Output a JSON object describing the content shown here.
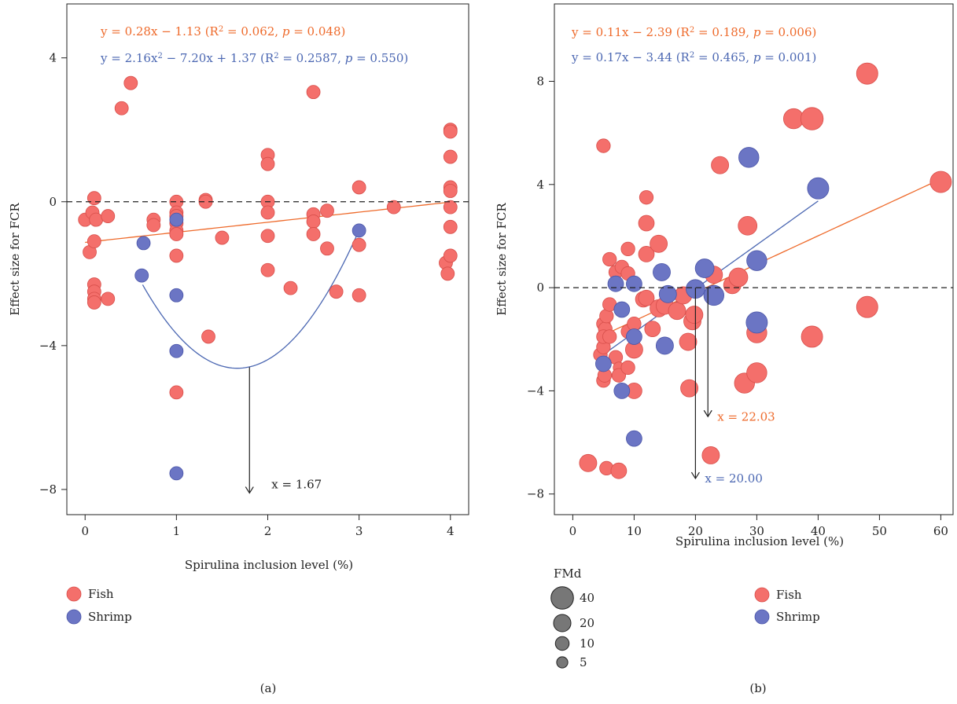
{
  "colors": {
    "fish": "#f46f6b",
    "shrimp": "#6b75c4",
    "fish_line": "#ee6a2b",
    "shrimp_line": "#4b67b2",
    "fmd": "#777777"
  },
  "chart_data": [
    {
      "type": "scatter",
      "panel": "(a)",
      "xlabel": "Spirulina inclusion level (%)",
      "ylabel": "Effect size for FCR",
      "xlim": [
        -0.2,
        4.2
      ],
      "ylim": [
        -8.7,
        5.5
      ],
      "xticks": [
        0,
        1,
        2,
        3,
        4
      ],
      "yticks": [
        -8,
        -4,
        0,
        4
      ],
      "tick_labels_x": [
        "0",
        "1",
        "2",
        "3",
        "4"
      ],
      "tick_labels_y": [
        "−8",
        "−4",
        "0",
        "4"
      ],
      "reference_line_y": 0,
      "equations": [
        {
          "parts": [
            "y = 0.28x − 1.13 (R",
            "2",
            " = 0.062, ",
            "p",
            " = 0.048)"
          ],
          "series": "Fish"
        },
        {
          "parts": [
            "y = 2.16x",
            "2",
            " − 7.20x + 1.37 (R",
            "2",
            " = 0.2587, ",
            "p",
            " = 0.550)"
          ],
          "series": "Shrimp"
        }
      ],
      "fits": [
        {
          "series": "Fish",
          "form": "linear",
          "coef": [
            0.28,
            -1.13
          ],
          "x_range": [
            0,
            4
          ]
        },
        {
          "series": "Shrimp",
          "form": "quadratic",
          "coef": [
            2.16,
            -7.2,
            1.37
          ],
          "x_range": [
            0.63,
            3.0
          ]
        }
      ],
      "annotations": [
        {
          "text": "x = 1.67",
          "x": 1.8,
          "y_from": -4.6,
          "y_to": -8.1
        }
      ],
      "series": [
        {
          "name": "Fish",
          "points": [
            [
              0,
              -0.5
            ],
            [
              0.05,
              -1.4
            ],
            [
              0.08,
              -0.3
            ],
            [
              0.1,
              0.1
            ],
            [
              0.1,
              -1.1
            ],
            [
              0.1,
              -2.3
            ],
            [
              0.1,
              -2.5
            ],
            [
              0.1,
              -2.7
            ],
            [
              0.1,
              -2.8
            ],
            [
              0.12,
              -0.5
            ],
            [
              0.25,
              -0.4
            ],
            [
              0.25,
              -2.7
            ],
            [
              0.4,
              2.6
            ],
            [
              0.5,
              3.3
            ],
            [
              0.75,
              -0.5
            ],
            [
              0.75,
              -0.65
            ],
            [
              1,
              0
            ],
            [
              1,
              -0.3
            ],
            [
              1,
              -0.4
            ],
            [
              1,
              -0.6
            ],
            [
              1,
              -0.8
            ],
            [
              1,
              -0.9
            ],
            [
              1,
              -1.5
            ],
            [
              1,
              -5.3
            ],
            [
              1.32,
              0.05
            ],
            [
              1.32,
              0.0
            ],
            [
              1.35,
              -3.75
            ],
            [
              1.5,
              -1.0
            ],
            [
              2,
              1.3
            ],
            [
              2,
              1.05
            ],
            [
              2,
              0
            ],
            [
              2,
              -0.3
            ],
            [
              2,
              -0.95
            ],
            [
              2,
              -1.9
            ],
            [
              2.25,
              -2.4
            ],
            [
              2.5,
              3.05
            ],
            [
              2.5,
              -0.35
            ],
            [
              2.5,
              -0.55
            ],
            [
              2.5,
              -0.9
            ],
            [
              2.65,
              -0.25
            ],
            [
              2.65,
              -1.3
            ],
            [
              2.75,
              -2.5
            ],
            [
              3,
              0.4
            ],
            [
              3,
              -1.2
            ],
            [
              3,
              -2.6
            ],
            [
              3.38,
              -0.15
            ],
            [
              3.95,
              -1.7
            ],
            [
              3.97,
              -2.0
            ],
            [
              4,
              2.0
            ],
            [
              4,
              1.95
            ],
            [
              4,
              1.25
            ],
            [
              4,
              0.4
            ],
            [
              4,
              0.3
            ],
            [
              4,
              -0.15
            ],
            [
              4,
              -0.7
            ],
            [
              4,
              -1.5
            ]
          ]
        },
        {
          "name": "Shrimp",
          "points": [
            [
              0.62,
              -2.05
            ],
            [
              0.64,
              -1.15
            ],
            [
              1,
              -0.5
            ],
            [
              1,
              -2.6
            ],
            [
              1,
              -4.15
            ],
            [
              1,
              -7.55
            ],
            [
              3,
              -0.8
            ]
          ]
        }
      ],
      "legend": [
        "Fish",
        "Shrimp"
      ]
    },
    {
      "type": "scatter",
      "panel": "(b)",
      "xlabel": "Spirulina inclusion level (%)",
      "ylabel": "Effect size for FCR",
      "xlim": [
        -3,
        62
      ],
      "ylim": [
        -8.8,
        11
      ],
      "xticks": [
        0,
        10,
        20,
        30,
        40,
        50,
        60
      ],
      "yticks": [
        -8,
        -4,
        0,
        4,
        8
      ],
      "tick_labels_x": [
        "0",
        "10",
        "20",
        "30",
        "40",
        "50",
        "60"
      ],
      "tick_labels_y": [
        "−8",
        "−4",
        "0",
        "4",
        "8"
      ],
      "reference_line_y": 0,
      "equations": [
        {
          "parts": [
            "y = 0.11x − 2.39 (R",
            "2",
            " = 0.189, ",
            "p",
            " = 0.006)"
          ],
          "series": "Fish"
        },
        {
          "parts": [
            "y = 0.17x − 3.44 (R",
            "2",
            " = 0.465, ",
            "p",
            " = 0.001)"
          ],
          "series": "Shrimp"
        }
      ],
      "fits": [
        {
          "series": "Fish",
          "form": "linear",
          "coef": [
            0.11,
            -2.39
          ],
          "x_range": [
            5,
            60
          ]
        },
        {
          "series": "Shrimp",
          "form": "linear",
          "coef": [
            0.17,
            -3.44
          ],
          "x_range": [
            5,
            40
          ]
        }
      ],
      "annotations": [
        {
          "text": "x = 22.03",
          "x": 22.03,
          "y_from": 0,
          "y_to": -5.0,
          "series": "Fish"
        },
        {
          "text": "x = 20.00",
          "x": 20.0,
          "y_from": 0,
          "y_to": -7.4,
          "series": "Shrimp"
        }
      ],
      "size_legend": {
        "title": "FMd",
        "values": [
          40,
          20,
          10,
          5
        ]
      },
      "series": [
        {
          "name": "Fish",
          "points": [
            [
              2.5,
              -6.8,
              20
            ],
            [
              5,
              5.5,
              10
            ],
            [
              5.5,
              -7.0,
              10
            ],
            [
              7.5,
              -7.1,
              15
            ],
            [
              4.5,
              -2.6,
              10
            ],
            [
              5,
              -1.4,
              10
            ],
            [
              5.3,
              -1.6,
              10
            ],
            [
              5,
              -3.6,
              10
            ],
            [
              5.2,
              -3.4,
              10
            ],
            [
              5.5,
              -1.1,
              10
            ],
            [
              5,
              -2.3,
              10
            ],
            [
              5,
              -1.9,
              10
            ],
            [
              6,
              -0.65,
              10
            ],
            [
              6,
              -1.9,
              10
            ],
            [
              6,
              1.1,
              10
            ],
            [
              7,
              0.6,
              10
            ],
            [
              7,
              -2.7,
              10
            ],
            [
              7.5,
              -3.1,
              5
            ],
            [
              8,
              0.8,
              10
            ],
            [
              7.5,
              -3.4,
              10
            ],
            [
              9,
              1.5,
              10
            ],
            [
              9,
              0.55,
              10
            ],
            [
              9,
              -1.7,
              10
            ],
            [
              9,
              -3.1,
              10
            ],
            [
              10,
              -1.4,
              10
            ],
            [
              10,
              -2.4,
              20
            ],
            [
              10,
              -4.0,
              15
            ],
            [
              12,
              3.5,
              10
            ],
            [
              12,
              2.5,
              15
            ],
            [
              12,
              1.3,
              15
            ],
            [
              11.5,
              -0.45,
              15
            ],
            [
              12,
              -0.4,
              15
            ],
            [
              13,
              -1.6,
              15
            ],
            [
              14,
              1.7,
              20
            ],
            [
              14,
              -0.8,
              20
            ],
            [
              15,
              -0.7,
              20
            ],
            [
              17,
              -0.9,
              20
            ],
            [
              18,
              -0.3,
              20
            ],
            [
              18.8,
              -2.1,
              20
            ],
            [
              19,
              -3.9,
              20
            ],
            [
              19.5,
              -1.3,
              20
            ],
            [
              19.8,
              -1.05,
              20
            ],
            [
              22.5,
              -6.5,
              20
            ],
            [
              23,
              0.5,
              20
            ],
            [
              24,
              4.75,
              20
            ],
            [
              26,
              0.1,
              20
            ],
            [
              27,
              0.4,
              25
            ],
            [
              28,
              -3.7,
              30
            ],
            [
              28.5,
              2.4,
              25
            ],
            [
              30,
              -1.75,
              30
            ],
            [
              30,
              -3.3,
              30
            ],
            [
              36,
              6.55,
              30
            ],
            [
              39,
              6.55,
              40
            ],
            [
              39,
              -1.9,
              35
            ],
            [
              48,
              8.3,
              35
            ],
            [
              48,
              -0.75,
              35
            ],
            [
              60,
              4.1,
              35
            ]
          ]
        },
        {
          "name": "Shrimp",
          "points": [
            [
              5,
              -2.95,
              15
            ],
            [
              7,
              0.15,
              15
            ],
            [
              8,
              -0.85,
              15
            ],
            [
              8,
              -4.0,
              15
            ],
            [
              10,
              0.15,
              15
            ],
            [
              10,
              -1.9,
              15
            ],
            [
              10,
              -5.85,
              15
            ],
            [
              14.5,
              0.6,
              20
            ],
            [
              15,
              -2.25,
              20
            ],
            [
              15.5,
              -0.25,
              20
            ],
            [
              20,
              -0.05,
              25
            ],
            [
              21.5,
              0.75,
              25
            ],
            [
              23,
              -0.3,
              30
            ],
            [
              28.7,
              5.05,
              30
            ],
            [
              30,
              1.05,
              30
            ],
            [
              30,
              -1.35,
              35
            ],
            [
              40,
              3.85,
              35
            ]
          ]
        }
      ],
      "legend": [
        "Fish",
        "Shrimp"
      ]
    }
  ],
  "captions": [
    "(a)",
    "(b)"
  ]
}
